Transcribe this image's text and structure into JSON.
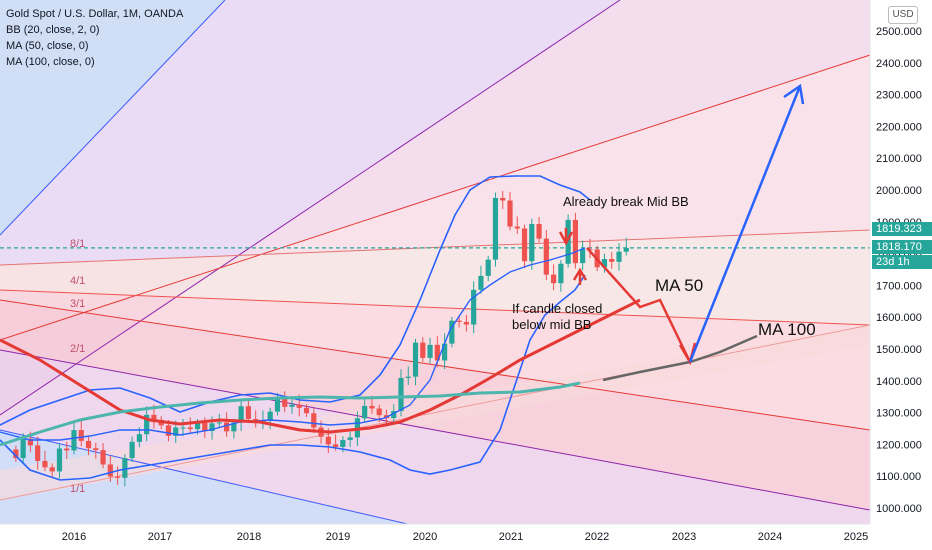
{
  "legend": {
    "title": "Gold Spot / U.S. Dollar, 1M, OANDA",
    "bb": "BB (20, close, 2, 0)",
    "ma50": "MA (50, close, 0)",
    "ma100": "MA (100, close, 0)"
  },
  "currency": "USD",
  "price_tags": {
    "last": "1819.323",
    "current": "1818.170",
    "countdown": "23d 1h"
  },
  "annotations": {
    "already_break": "Already break Mid BB",
    "if_candle_line1": "If candle closed",
    "if_candle_line2": "below mid BB",
    "ma50_label": "MA 50",
    "ma100_label": "MA 100"
  },
  "colors": {
    "candle_up": "#26a69a",
    "candle_down": "#ef5350",
    "bb": "#2962ff",
    "ma50": "#e53935",
    "ma100": "#4db6ac",
    "arrow_red": "#e53935",
    "arrow_blue": "#2962ff",
    "gray_arrow": "#666666",
    "dashed_last": "#26a69a"
  },
  "chart_data": {
    "type": "candlestick",
    "symbol": "XAUUSD",
    "timeframe": "1M",
    "y_ticks": [
      1000,
      1100,
      1200,
      1300,
      1400,
      1500,
      1600,
      1700,
      1800,
      1900,
      2000,
      2100,
      2200,
      2300,
      2400,
      2500
    ],
    "x_ticks": [
      "2016",
      "2017",
      "2018",
      "2019",
      "2020",
      "2021",
      "2022",
      "2023",
      "2024",
      "2025"
    ],
    "gann_labels": [
      "8/1",
      "4/1",
      "3/1",
      "2/1",
      "1/1"
    ],
    "closes": [
      1157,
      1218,
      1197,
      1148,
      1128,
      1115,
      1187,
      1181,
      1245,
      1211,
      1188,
      1182,
      1137,
      1099,
      1095,
      1157,
      1208,
      1232,
      1293,
      1277,
      1260,
      1227,
      1253,
      1253,
      1248,
      1268,
      1242,
      1266,
      1269,
      1241,
      1269,
      1320,
      1280,
      1270,
      1275,
      1303,
      1345,
      1318,
      1325,
      1315,
      1298,
      1253,
      1224,
      1200,
      1192,
      1214,
      1222,
      1282,
      1321,
      1313,
      1292,
      1283,
      1305,
      1409,
      1413,
      1520,
      1472,
      1513,
      1464,
      1517,
      1589,
      1585,
      1577,
      1686,
      1730,
      1781,
      1975,
      1967,
      1885,
      1879,
      1776,
      1893,
      1847,
      1734,
      1707,
      1768,
      1906,
      1770,
      1814,
      1813,
      1757,
      1783,
      1774,
      1806,
      1818
    ],
    "last_price": 1818.17
  }
}
